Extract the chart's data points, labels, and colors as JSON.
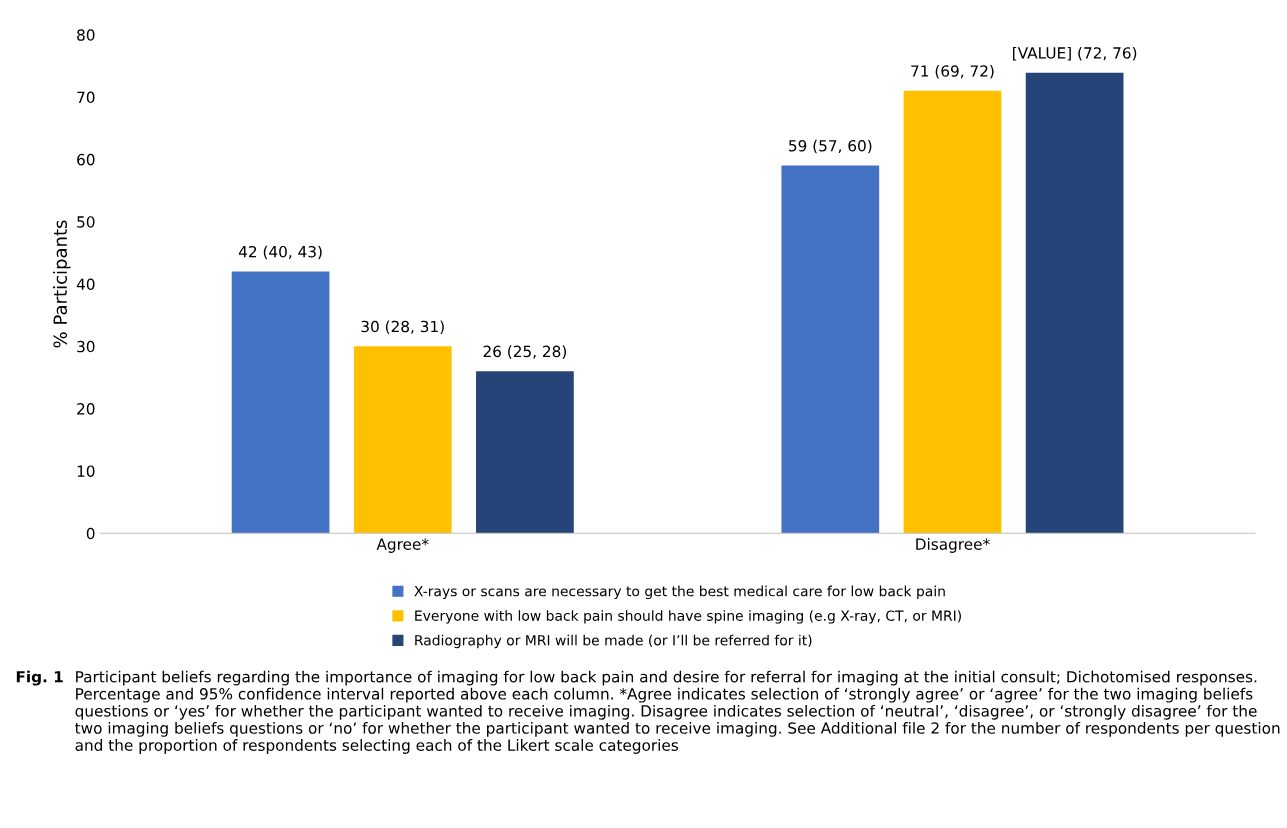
{
  "chart_data": {
    "type": "bar",
    "ylabel": "% Participants",
    "categories": [
      "Agree*",
      "Disagree*"
    ],
    "series": [
      {
        "name": "X-rays or scans are necessary to get the best medical care for low back pain",
        "color": "#4472c4",
        "values": [
          42,
          59
        ],
        "value_labels": [
          "42 (40, 43)",
          "59 (57, 60)"
        ]
      },
      {
        "name": "Everyone with low back pain should have spine imaging (e.g X-ray, CT, or MRI)",
        "color": "#ffc000",
        "values": [
          30,
          71
        ],
        "value_labels": [
          "30 (28, 31)",
          "71 (69, 72)"
        ]
      },
      {
        "name": "Radiography or MRI will be made (or I’ll be referred for it)",
        "color": "#264478",
        "values": [
          26,
          73.9
        ],
        "value_labels": [
          "26 (25, 28)",
          "[VALUE] (72, 76)"
        ]
      }
    ],
    "ylim": [
      0,
      80
    ],
    "yticks": [
      0,
      10,
      20,
      30,
      40,
      50,
      60,
      70,
      80
    ],
    "grid": false,
    "legend": "bottom",
    "annotations": [
      "Fig. 1",
      "Participant beliefs regarding the importance of imaging for low back pain and desire for referral for imaging at the initial consult; Dichotomised responses. Percentage and 95% confidence interval reported above each column. *Agree indicates selection of ‘strongly agree’ or ‘agree’ for the two imaging beliefs questions or ‘yes’ for whether the participant wanted to receive imaging. Disagree indicates selection of ‘neutral’, ‘disagree’, or ‘strongly disagree’ for the two imaging beliefs questions or ‘no’ for whether the participant wanted to receive imaging. See Additional file 2 for the number of respondents per question and the proportion of respondents selecting each of the Likert scale categories"
    ]
  }
}
